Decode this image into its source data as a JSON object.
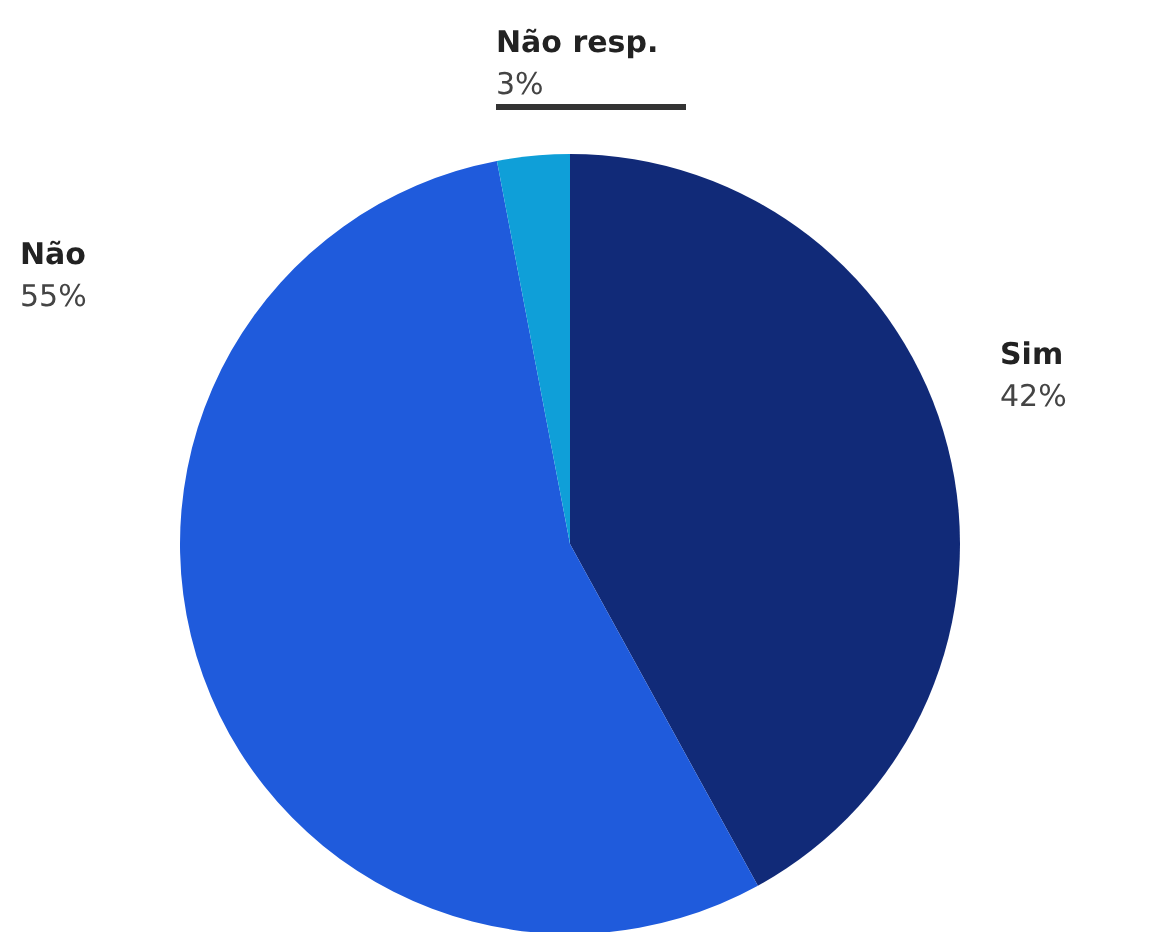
{
  "chart_data": {
    "type": "pie",
    "categories": [
      "Sim",
      "Não",
      "Não resp."
    ],
    "values": [
      42,
      55,
      3
    ],
    "colors": [
      "#112a78",
      "#1f5bdc",
      "#0f9fd8"
    ],
    "value_labels": [
      "42%",
      "55%",
      "3%"
    ],
    "legend": false
  }
}
